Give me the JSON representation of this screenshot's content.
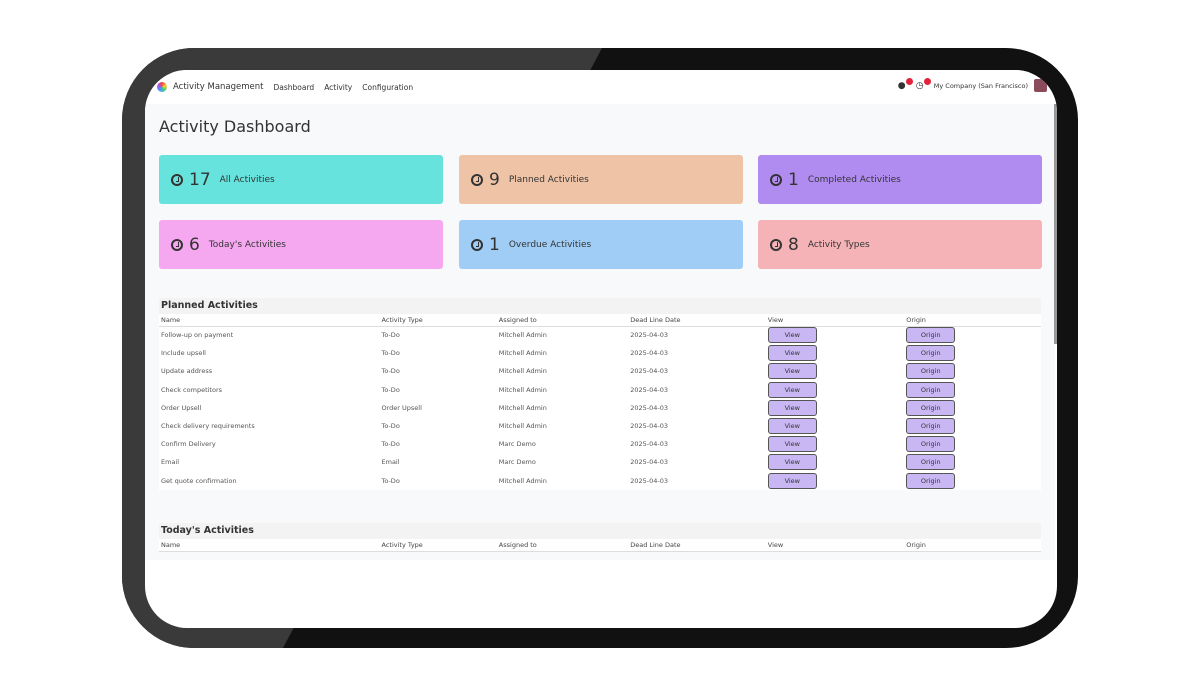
{
  "nav": {
    "app": "Activity Management",
    "items": [
      "Dashboard",
      "Activity",
      "Configuration"
    ],
    "company": "My Company (San Francisco)"
  },
  "page_title": "Activity Dashboard",
  "cards": [
    {
      "count": "17",
      "label": "All Activities",
      "color": "#66e3dd"
    },
    {
      "count": "9",
      "label": "Planned Activities",
      "color": "#efc4a6"
    },
    {
      "count": "1",
      "label": "Completed Activities",
      "color": "#b18cf0"
    },
    {
      "count": "6",
      "label": "Today's Activities",
      "color": "#f5a8f0"
    },
    {
      "count": "1",
      "label": "Overdue Activities",
      "color": "#9fcdf5"
    },
    {
      "count": "8",
      "label": "Activity Types",
      "color": "#f5b3b8"
    }
  ],
  "columns": [
    "Name",
    "Activity Type",
    "Assigned to",
    "Dead Line Date",
    "View",
    "Origin"
  ],
  "planned": {
    "title": "Planned Activities",
    "rows": [
      [
        "Follow-up on payment",
        "To-Do",
        "Mitchell Admin",
        "2025-04-03"
      ],
      [
        "Include upsell",
        "To-Do",
        "Mitchell Admin",
        "2025-04-03"
      ],
      [
        "Update address",
        "To-Do",
        "Mitchell Admin",
        "2025-04-03"
      ],
      [
        "Check competitors",
        "To-Do",
        "Mitchell Admin",
        "2025-04-03"
      ],
      [
        "Order Upsell",
        "Order Upsell",
        "Mitchell Admin",
        "2025-04-03"
      ],
      [
        "Check delivery requirements",
        "To-Do",
        "Mitchell Admin",
        "2025-04-03"
      ],
      [
        "Confirm Delivery",
        "To-Do",
        "Marc Demo",
        "2025-04-03"
      ],
      [
        "Email",
        "Email",
        "Marc Demo",
        "2025-04-03"
      ],
      [
        "Get quote confirmation",
        "To-Do",
        "Mitchell Admin",
        "2025-04-03"
      ]
    ]
  },
  "today": {
    "title": "Today's Activities"
  },
  "buttons": {
    "view": "View",
    "origin": "Origin"
  }
}
